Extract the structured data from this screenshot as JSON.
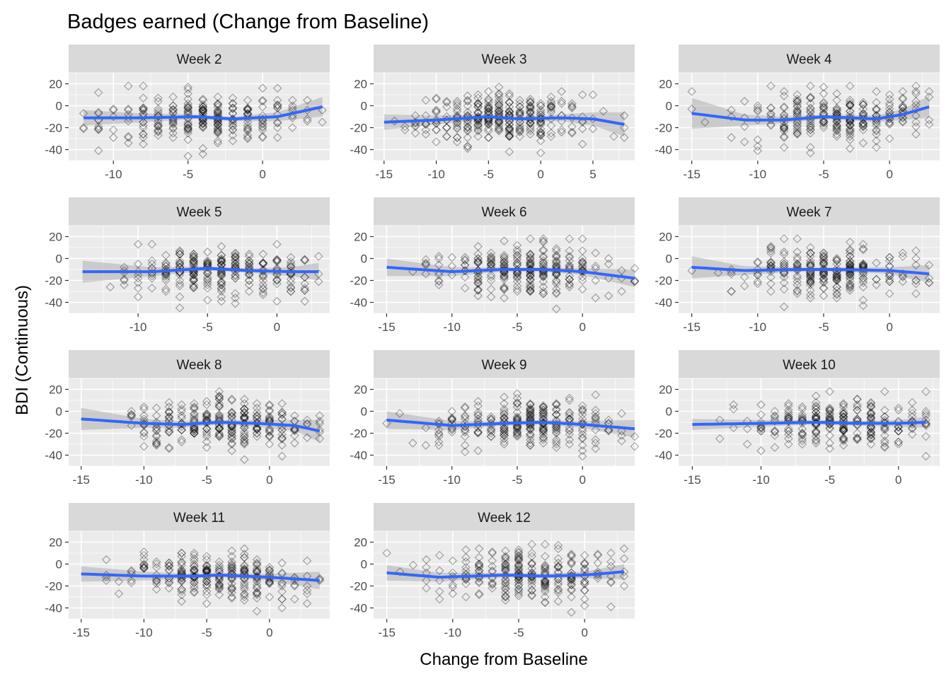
{
  "chart_data": {
    "type": "scatter",
    "title": "Badges earned (Change from Baseline)",
    "xlabel": "Change from Baseline",
    "ylabel": "BDI (Continuous)",
    "marker": "open-diamond",
    "colors": {
      "panel_bg": "#ebebeb",
      "grid": "#ffffff",
      "strip_bg": "#d9d9d9",
      "points": "#000000",
      "smooth_line": "#3366ff",
      "ribbon": "#999999",
      "tick": "#333333"
    },
    "y_ticks": [
      20,
      0,
      -20,
      -40
    ],
    "ylim": [
      -50,
      30
    ],
    "panels": [
      {
        "label": "Week 2",
        "xlim": [
          -13,
          4.5
        ],
        "x_ticks": [
          -10,
          -5,
          0
        ],
        "x_range": [
          -12,
          4
        ],
        "point_x_center": -3.5,
        "point_x_spread": 3.5,
        "n_points": 260,
        "smooth": [
          [
            -12,
            -11
          ],
          [
            -8,
            -11
          ],
          [
            -4.5,
            -10
          ],
          [
            -2,
            -12
          ],
          [
            1,
            -10
          ],
          [
            4,
            -1
          ]
        ],
        "se": [
          [
            -12,
            7
          ],
          [
            -8,
            4
          ],
          [
            -4.5,
            2
          ],
          [
            -2,
            2
          ],
          [
            1,
            4
          ],
          [
            4,
            9
          ]
        ]
      },
      {
        "label": "Week 3",
        "xlim": [
          -16,
          9
        ],
        "x_ticks": [
          -15,
          -10,
          -5,
          0,
          5
        ],
        "x_range": [
          -15,
          8
        ],
        "point_x_center": -3.5,
        "point_x_spread": 4,
        "n_points": 320,
        "smooth": [
          [
            -15,
            -15
          ],
          [
            -10,
            -13
          ],
          [
            -5,
            -10
          ],
          [
            -2,
            -12
          ],
          [
            2,
            -11
          ],
          [
            5,
            -12
          ],
          [
            8,
            -17
          ]
        ],
        "se": [
          [
            -15,
            7
          ],
          [
            -10,
            4
          ],
          [
            -5,
            2
          ],
          [
            -2,
            2
          ],
          [
            2,
            3
          ],
          [
            5,
            6
          ],
          [
            8,
            11
          ]
        ]
      },
      {
        "label": "Week 4",
        "xlim": [
          -16,
          3.8
        ],
        "x_ticks": [
          -15,
          -10,
          -5,
          0
        ],
        "x_range": [
          -15,
          3
        ],
        "point_x_center": -4,
        "point_x_spread": 3.5,
        "n_points": 260,
        "smooth": [
          [
            -15,
            -7
          ],
          [
            -11,
            -13
          ],
          [
            -8,
            -13
          ],
          [
            -5,
            -10
          ],
          [
            -1,
            -12
          ],
          [
            1,
            -8
          ],
          [
            3,
            -1
          ]
        ],
        "se": [
          [
            -15,
            14
          ],
          [
            -11,
            5
          ],
          [
            -8,
            3
          ],
          [
            -5,
            2
          ],
          [
            -1,
            3
          ],
          [
            1,
            5
          ],
          [
            3,
            10
          ]
        ]
      },
      {
        "label": "Week 5",
        "xlim": [
          -15,
          3.8
        ],
        "x_ticks": [
          -10,
          -5,
          0
        ],
        "x_range": [
          -14,
          3
        ],
        "point_x_center": -4,
        "point_x_spread": 3.5,
        "n_points": 270,
        "smooth": [
          [
            -14,
            -12
          ],
          [
            -9,
            -12
          ],
          [
            -5,
            -9
          ],
          [
            -2,
            -11
          ],
          [
            1,
            -12
          ],
          [
            3,
            -12
          ]
        ],
        "se": [
          [
            -14,
            10
          ],
          [
            -9,
            4
          ],
          [
            -5,
            2
          ],
          [
            -2,
            2
          ],
          [
            1,
            4
          ],
          [
            3,
            8
          ]
        ]
      },
      {
        "label": "Week 6",
        "xlim": [
          -16,
          4
        ],
        "x_ticks": [
          -15,
          -10,
          -5,
          0
        ],
        "x_range": [
          -15,
          4
        ],
        "point_x_center": -4,
        "point_x_spread": 3.5,
        "n_points": 270,
        "smooth": [
          [
            -15,
            -8
          ],
          [
            -10,
            -12
          ],
          [
            -6,
            -10
          ],
          [
            -3,
            -10
          ],
          [
            0,
            -12
          ],
          [
            4,
            -18
          ]
        ],
        "se": [
          [
            -15,
            8
          ],
          [
            -10,
            4
          ],
          [
            -6,
            2
          ],
          [
            -3,
            2
          ],
          [
            0,
            3
          ],
          [
            4,
            8
          ]
        ]
      },
      {
        "label": "Week 7",
        "xlim": [
          -16,
          3.8
        ],
        "x_ticks": [
          -15,
          -10,
          -5,
          0
        ],
        "x_range": [
          -15,
          3
        ],
        "point_x_center": -4.5,
        "point_x_spread": 3.5,
        "n_points": 260,
        "smooth": [
          [
            -15,
            -8
          ],
          [
            -11,
            -11
          ],
          [
            -7,
            -10
          ],
          [
            -4,
            -10
          ],
          [
            0,
            -11
          ],
          [
            3,
            -14
          ]
        ],
        "se": [
          [
            -15,
            10
          ],
          [
            -11,
            4
          ],
          [
            -7,
            2
          ],
          [
            -4,
            2
          ],
          [
            0,
            3
          ],
          [
            3,
            8
          ]
        ]
      },
      {
        "label": "Week 8",
        "xlim": [
          -16,
          4.8
        ],
        "x_ticks": [
          -15,
          -10,
          -5,
          0
        ],
        "x_range": [
          -15,
          4
        ],
        "point_x_center": -4,
        "point_x_spread": 3.5,
        "n_points": 280,
        "smooth": [
          [
            -15,
            -7
          ],
          [
            -10,
            -11
          ],
          [
            -7,
            -12
          ],
          [
            -4,
            -10
          ],
          [
            -1,
            -11
          ],
          [
            2,
            -13
          ],
          [
            4,
            -18
          ]
        ],
        "se": [
          [
            -15,
            10
          ],
          [
            -10,
            4
          ],
          [
            -7,
            3
          ],
          [
            -4,
            2
          ],
          [
            -1,
            3
          ],
          [
            2,
            5
          ],
          [
            4,
            10
          ]
        ]
      },
      {
        "label": "Week 9",
        "xlim": [
          -16,
          4
        ],
        "x_ticks": [
          -15,
          -10,
          -5,
          0
        ],
        "x_range": [
          -15,
          4
        ],
        "point_x_center": -4,
        "point_x_spread": 3.5,
        "n_points": 280,
        "smooth": [
          [
            -15,
            -8
          ],
          [
            -10,
            -13
          ],
          [
            -6,
            -11
          ],
          [
            -3,
            -10
          ],
          [
            0,
            -12
          ],
          [
            4,
            -16
          ]
        ],
        "se": [
          [
            -15,
            8
          ],
          [
            -10,
            4
          ],
          [
            -6,
            2
          ],
          [
            -3,
            2
          ],
          [
            0,
            3
          ],
          [
            4,
            8
          ]
        ]
      },
      {
        "label": "Week 10",
        "xlim": [
          -16,
          3
        ],
        "x_ticks": [
          -15,
          -10,
          -5,
          0
        ],
        "x_range": [
          -15,
          2
        ],
        "point_x_center": -4.5,
        "point_x_spread": 3.5,
        "n_points": 260,
        "smooth": [
          [
            -15,
            -12
          ],
          [
            -10,
            -11
          ],
          [
            -6,
            -10
          ],
          [
            -3,
            -11
          ],
          [
            0,
            -11
          ],
          [
            2,
            -10
          ]
        ],
        "se": [
          [
            -15,
            5
          ],
          [
            -10,
            3
          ],
          [
            -6,
            2
          ],
          [
            -3,
            2
          ],
          [
            0,
            3
          ],
          [
            2,
            5
          ]
        ]
      },
      {
        "label": "Week 11",
        "xlim": [
          -16,
          4.8
        ],
        "x_ticks": [
          -15,
          -10,
          -5,
          0
        ],
        "x_range": [
          -15,
          4
        ],
        "point_x_center": -4,
        "point_x_spread": 3.5,
        "n_points": 270,
        "smooth": [
          [
            -15,
            -9
          ],
          [
            -10,
            -11
          ],
          [
            -6,
            -11
          ],
          [
            -4,
            -10
          ],
          [
            0,
            -12
          ],
          [
            4,
            -15
          ]
        ],
        "se": [
          [
            -15,
            7
          ],
          [
            -10,
            4
          ],
          [
            -6,
            2
          ],
          [
            -4,
            2
          ],
          [
            0,
            3
          ],
          [
            4,
            8
          ]
        ]
      },
      {
        "label": "Week 12",
        "xlim": [
          -16,
          3.8
        ],
        "x_ticks": [
          -15,
          -10,
          -5,
          0
        ],
        "x_range": [
          -15,
          3
        ],
        "point_x_center": -4.5,
        "point_x_spread": 3.5,
        "n_points": 260,
        "smooth": [
          [
            -15,
            -8
          ],
          [
            -11,
            -12
          ],
          [
            -6,
            -10
          ],
          [
            -3,
            -11
          ],
          [
            0,
            -10
          ],
          [
            3,
            -7
          ]
        ],
        "se": [
          [
            -15,
            7
          ],
          [
            -11,
            4
          ],
          [
            -6,
            2
          ],
          [
            -3,
            2
          ],
          [
            0,
            3
          ],
          [
            3,
            7
          ]
        ]
      }
    ]
  }
}
